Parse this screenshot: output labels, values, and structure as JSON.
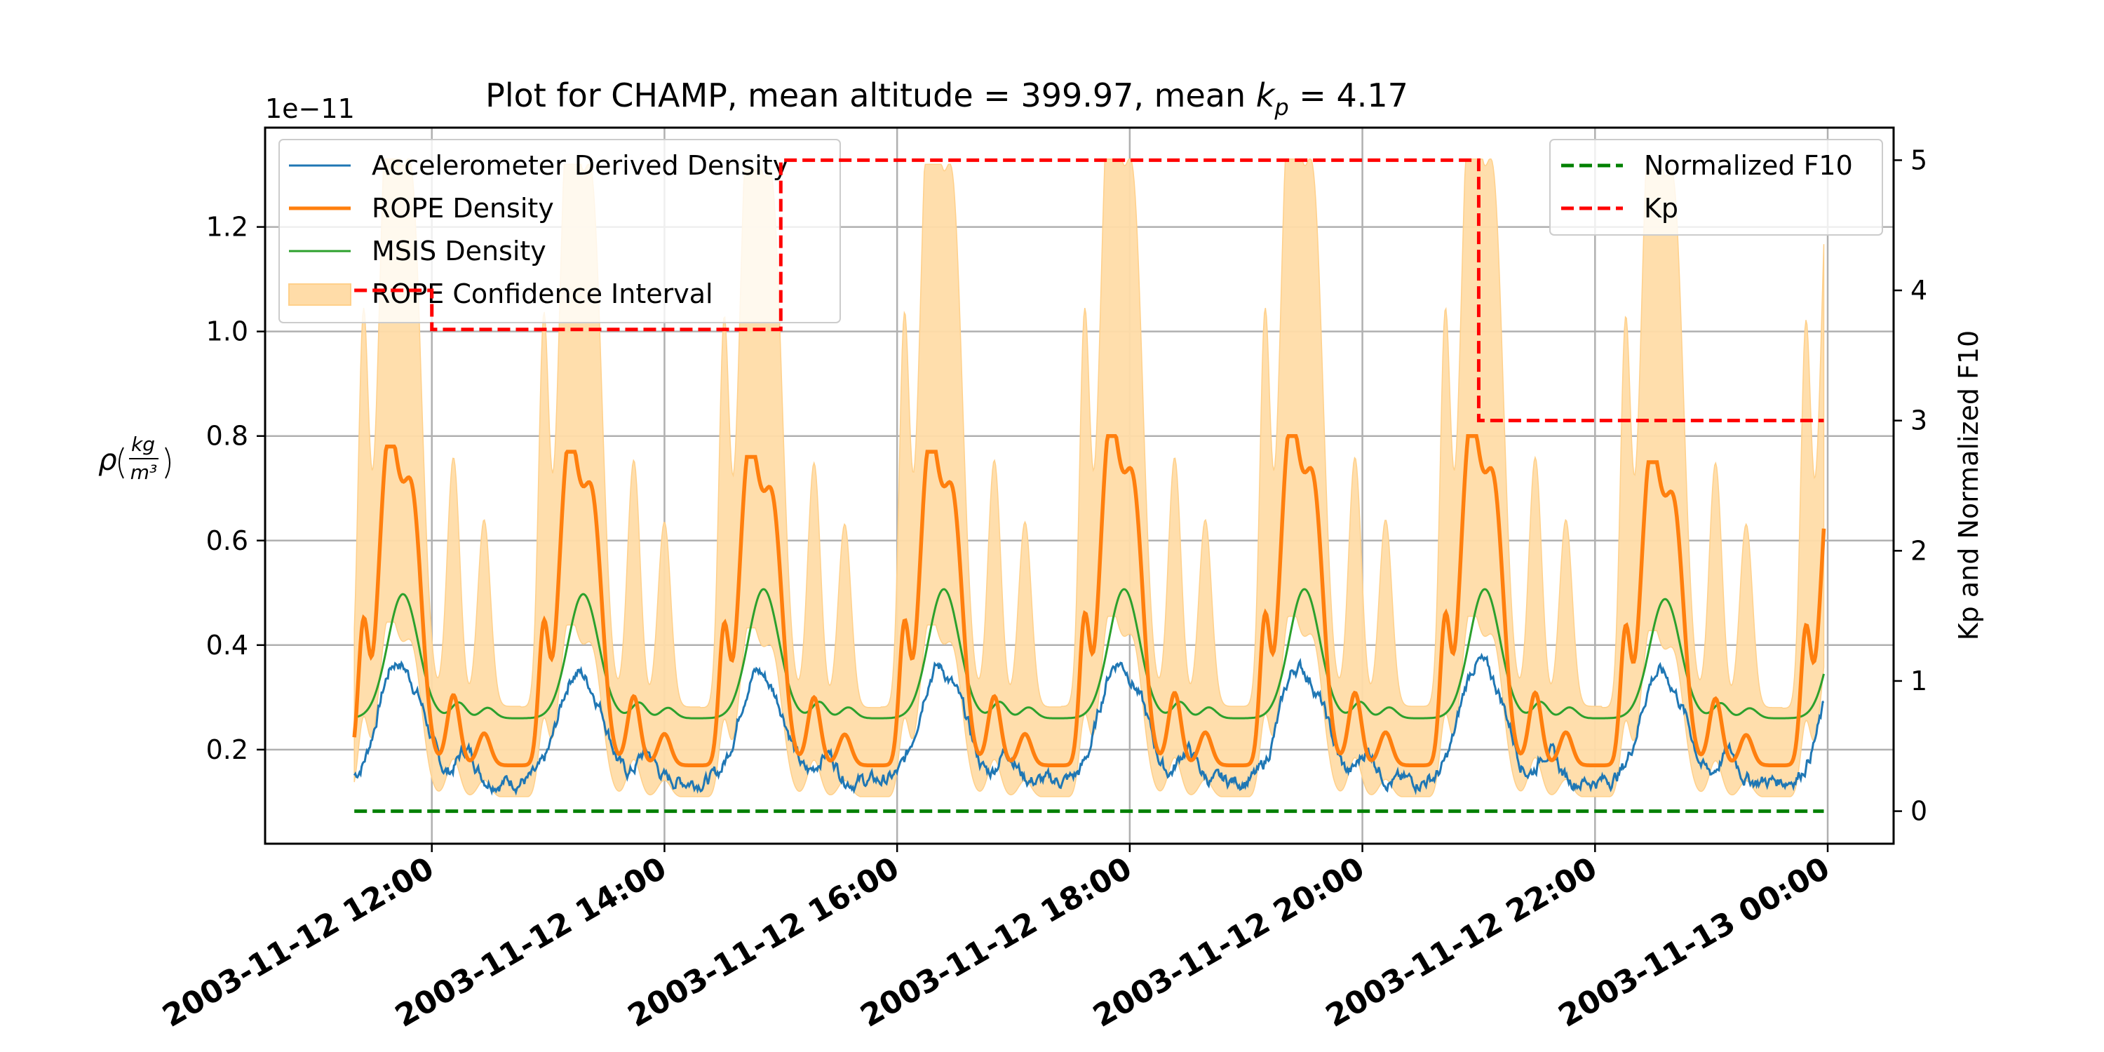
{
  "chart_data": {
    "type": "line",
    "title": "Plot for CHAMP, mean altitude = 399.97, mean k_p = 4.17",
    "title_parts": {
      "prefix": "Plot for CHAMP, mean altitude = 399.97, mean ",
      "k": "k",
      "p": "p",
      "suffix": " = 4.17"
    },
    "offset_text": "1e−11",
    "left_axis": {
      "label": "ρ",
      "label_unit": {
        "kg": "kg",
        "m3": "m³"
      },
      "ylim": [
        0.02,
        1.39
      ],
      "scale_note": "values shown × 1e-11 kg/m³",
      "ticks": [
        0.2,
        0.4,
        0.6,
        0.8,
        1.0,
        1.2
      ],
      "tick_labels": [
        "0.2",
        "0.4",
        "0.6",
        "0.8",
        "1.0",
        "1.2"
      ]
    },
    "right_axis": {
      "label": "Kp and Normalized F10",
      "ylim": [
        -0.25,
        5.25
      ],
      "ticks": [
        0,
        1,
        2,
        3,
        4,
        5
      ],
      "tick_labels": [
        "0",
        "1",
        "2",
        "3",
        "4",
        "5"
      ]
    },
    "x_axis": {
      "xlim": [
        "2003-11-12 10:34",
        "2003-11-13 00:34"
      ],
      "ticks": [
        "2003-11-12 12:00",
        "2003-11-12 14:00",
        "2003-11-12 16:00",
        "2003-11-12 18:00",
        "2003-11-12 20:00",
        "2003-11-12 22:00",
        "2003-11-13 00:00"
      ],
      "tick_labels": [
        "2003-11-12 12:00",
        "2003-11-12 14:00",
        "2003-11-12 16:00",
        "2003-11-12 18:00",
        "2003-11-12 20:00",
        "2003-11-12 22:00",
        "2003-11-13 00:00"
      ]
    },
    "grid": true,
    "time_range": [
      "2003-11-12 11:20",
      "2003-11-12 23:58"
    ],
    "orbit_period_minutes": 93,
    "series": [
      {
        "name": "Accelerometer Derived Density",
        "axis": "left",
        "color": "#1f77b4",
        "style": "solid",
        "per_orbit_peaks": [
          0.38,
          0.36,
          0.36,
          0.37,
          0.38,
          0.37,
          0.38,
          0.36,
          0.35
        ],
        "typical_minimum": 0.14
      },
      {
        "name": "ROPE Density",
        "axis": "left",
        "color": "#ff7f0e",
        "style": "solid-thick",
        "per_orbit_peaks": [
          0.78,
          0.77,
          0.76,
          0.77,
          0.8,
          0.8,
          0.8,
          0.75,
          0.75
        ],
        "typical_minimum": 0.17
      },
      {
        "name": "MSIS Density",
        "axis": "left",
        "color": "#2ca02c",
        "style": "solid",
        "per_orbit_peaks": [
          0.51,
          0.51,
          0.52,
          0.52,
          0.52,
          0.52,
          0.52,
          0.5,
          0.5
        ],
        "typical_minimum": 0.26
      },
      {
        "name": "ROPE Confidence Interval",
        "axis": "left",
        "color": "#ffdca8",
        "style": "band",
        "per_orbit_upper_peaks": [
          1.33,
          1.32,
          1.31,
          1.32,
          1.33,
          1.33,
          1.33,
          1.31,
          1.3
        ],
        "typical_lower": 0.14
      },
      {
        "name": "Normalized F10",
        "axis": "right",
        "color": "#008000",
        "style": "dashed",
        "x": [
          "2003-11-12 11:20",
          "2003-11-12 23:58"
        ],
        "y": [
          0,
          0
        ]
      },
      {
        "name": "Kp",
        "axis": "right",
        "color": "#ff0000",
        "style": "dashed-step",
        "x": [
          "2003-11-12 11:20",
          "2003-11-12 12:00",
          "2003-11-12 15:00",
          "2003-11-12 21:00",
          "2003-11-12 23:58"
        ],
        "y": [
          4,
          3.7,
          5,
          3,
          3
        ]
      }
    ],
    "legends": [
      {
        "placement": "upper-left",
        "entries": [
          "Accelerometer Derived Density",
          "ROPE Density",
          "MSIS Density",
          "ROPE Confidence Interval"
        ]
      },
      {
        "placement": "upper-right",
        "entries": [
          "Normalized F10",
          "Kp"
        ]
      }
    ]
  }
}
